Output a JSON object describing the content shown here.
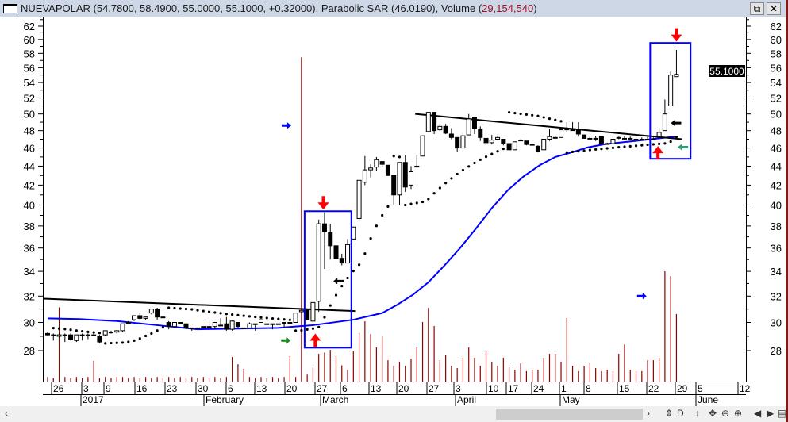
{
  "window": {
    "title_prefix": "NUEVAPOLAR (54.7800, 58.4900, 55.0000, 55.1000, +0.32000), Parabolic SAR (46.0190), Volume (",
    "title_volume": "29,154,540",
    "title_suffix": ")",
    "restore_icon": "restore-icon",
    "close_icon": "close-icon"
  },
  "price_badge": "55.1000",
  "bottom_controls": {
    "scroll_left": "‹",
    "scroll_right": "›",
    "buttons": [
      "⇕",
      "D",
      "↕",
      "✥",
      "⊖",
      "⊕",
      "◀",
      "▶",
      "▤"
    ]
  },
  "chart_data": {
    "type": "candlestick",
    "symbol": "NUEVAPOLAR",
    "y_scale": "log",
    "ylim": [
      26.5,
      63
    ],
    "y_ticks": [
      "28",
      "30",
      "32",
      "34",
      "36",
      "38",
      "40",
      "42",
      "44",
      "46",
      "48",
      "50",
      "52",
      "54",
      "56",
      "58",
      "60",
      "62"
    ],
    "x_tick_labels": [
      "26",
      "3",
      "9",
      "16",
      "23",
      "30",
      "6",
      "13",
      "20",
      "27",
      "6",
      "13",
      "20",
      "27",
      "3",
      "10",
      "17",
      "24",
      "1",
      "8",
      "15",
      "22",
      "29",
      "5",
      "12"
    ],
    "month_labels": [
      "2017",
      "February",
      "March",
      "April",
      "May",
      "June"
    ],
    "grid": false,
    "colors": {
      "up_fill": "#ffffff",
      "down_fill": "#000000",
      "volume": "#8b0000",
      "moving_average": "#0000ff",
      "trendline": "#000000",
      "box": "#0000ff",
      "sar": "#000000",
      "sell_arrow": "#ff0000",
      "buy_arrow": "#ff0000",
      "black_arrow": "#000000",
      "green_arrow": "#2e9e6e",
      "blue_arrow": "#0000ff"
    },
    "ohlc": [
      [
        29.2,
        29.3,
        29.0,
        29.1
      ],
      [
        29.1,
        29.2,
        28.7,
        29.1
      ],
      [
        29.0,
        29.2,
        28.9,
        29.1
      ],
      [
        29.1,
        29.2,
        28.6,
        29.1
      ],
      [
        29.1,
        29.2,
        28.7,
        28.8
      ],
      [
        28.7,
        29.1,
        28.6,
        29.1
      ],
      [
        29.1,
        29.2,
        28.7,
        29.1
      ],
      [
        29.1,
        29.2,
        28.8,
        29.1
      ],
      [
        29.1,
        29.2,
        29.0,
        29.1
      ],
      [
        29.0,
        29.1,
        28.5,
        28.6
      ],
      [
        29.1,
        29.4,
        29.0,
        29.4
      ],
      [
        29.3,
        29.4,
        29.2,
        29.3
      ],
      [
        29.3,
        29.4,
        29.2,
        29.4
      ],
      [
        29.4,
        29.9,
        29.3,
        29.9
      ],
      [
        30.0,
        30.1,
        29.9,
        30.0
      ],
      [
        30.2,
        30.5,
        30.1,
        30.5
      ],
      [
        30.5,
        30.7,
        30.2,
        30.3
      ],
      [
        30.3,
        30.4,
        30.2,
        30.4
      ],
      [
        30.7,
        31.0,
        30.6,
        31.0
      ],
      [
        31.0,
        31.1,
        30.2,
        30.4
      ],
      [
        30.4,
        30.4,
        30.4,
        30.4
      ],
      [
        30.0,
        30.1,
        29.5,
        29.7
      ],
      [
        29.7,
        30.0,
        29.7,
        30.0
      ],
      [
        30.0,
        30.0,
        30.0,
        30.0
      ],
      [
        29.9,
        29.9,
        29.5,
        29.6
      ],
      [
        29.6,
        29.6,
        29.4,
        29.6
      ],
      [
        29.6,
        29.6,
        29.6,
        29.6
      ],
      [
        29.7,
        29.7,
        29.7,
        29.7
      ],
      [
        29.7,
        30.2,
        29.7,
        29.7
      ],
      [
        29.7,
        30.0,
        29.5,
        30.0
      ],
      [
        29.8,
        30.3,
        29.8,
        29.8
      ],
      [
        29.9,
        30.4,
        29.4,
        29.5
      ],
      [
        29.5,
        30.2,
        29.4,
        30.1
      ],
      [
        30.0,
        30.0,
        29.6,
        29.7
      ],
      [
        29.6,
        29.6,
        29.6,
        29.6
      ],
      [
        29.6,
        30.0,
        29.6,
        29.9
      ],
      [
        29.9,
        29.9,
        29.4,
        29.9
      ],
      [
        30.0,
        30.2,
        30.0,
        30.2
      ],
      [
        29.9,
        29.9,
        29.9,
        29.9
      ],
      [
        29.9,
        29.9,
        29.5,
        29.9
      ],
      [
        29.9,
        29.9,
        29.9,
        29.9
      ],
      [
        30.0,
        30.0,
        29.6,
        30.0
      ],
      [
        30.0,
        30.0,
        29.9,
        30.0
      ],
      [
        30.0,
        30.7,
        30.0,
        30.7
      ],
      [
        30.8,
        31.0,
        30.7,
        30.9
      ],
      [
        31.0,
        31.0,
        30.2,
        30.2
      ],
      [
        30.1,
        31.5,
        30.0,
        31.5
      ],
      [
        31.6,
        38.6,
        30.8,
        38.2
      ],
      [
        38.2,
        39.3,
        34.2,
        37.5
      ],
      [
        37.4,
        38.2,
        35.0,
        36.2
      ],
      [
        36.2,
        36.2,
        34.3,
        35.1
      ],
      [
        35.1,
        35.5,
        34.5,
        34.7
      ],
      [
        34.7,
        36.8,
        34.7,
        36.3
      ],
      [
        36.8,
        37.9,
        36.8,
        37.9
      ],
      [
        38.7,
        42.5,
        38.5,
        42.5
      ],
      [
        42.3,
        45.1,
        42.0,
        43.6
      ],
      [
        43.6,
        44.2,
        42.8,
        43.8
      ],
      [
        43.9,
        45.0,
        43.5,
        44.7
      ],
      [
        44.5,
        44.5,
        43.9,
        44.2
      ],
      [
        44.1,
        44.1,
        43.0,
        43.0
      ],
      [
        43.0,
        43.0,
        40.0,
        41.0
      ],
      [
        41.0,
        44.4,
        40.0,
        44.4
      ],
      [
        44.4,
        45.2,
        41.3,
        41.8
      ],
      [
        42.0,
        44.0,
        41.6,
        43.4
      ],
      [
        43.9,
        45.2,
        43.9,
        44.0
      ],
      [
        45.1,
        47.4,
        45.1,
        47.4
      ],
      [
        47.9,
        50.2,
        47.9,
        50.2
      ],
      [
        50.2,
        50.2,
        47.6,
        48.0
      ],
      [
        48.1,
        48.8,
        48.0,
        48.5
      ],
      [
        48.5,
        48.8,
        47.6,
        47.7
      ],
      [
        47.6,
        48.3,
        47.0,
        47.2
      ],
      [
        47.2,
        47.2,
        45.6,
        46.0
      ],
      [
        46.0,
        47.7,
        46.0,
        47.4
      ],
      [
        47.5,
        50.0,
        47.5,
        49.4
      ],
      [
        49.6,
        49.6,
        47.6,
        48.3
      ],
      [
        48.2,
        48.5,
        46.8,
        47.2
      ],
      [
        47.1,
        47.1,
        46.4,
        46.6
      ],
      [
        46.6,
        47.5,
        46.4,
        46.9
      ],
      [
        47.0,
        47.3,
        46.9,
        47.2
      ],
      [
        47.0,
        47.0,
        46.3,
        46.5
      ],
      [
        46.5,
        46.5,
        45.6,
        45.8
      ],
      [
        45.8,
        46.7,
        45.8,
        46.7
      ],
      [
        46.9,
        47.0,
        46.8,
        46.9
      ],
      [
        46.8,
        46.8,
        46.3,
        46.4
      ],
      [
        46.4,
        46.4,
        46.3,
        46.4
      ],
      [
        46.2,
        46.3,
        45.5,
        45.6
      ],
      [
        45.8,
        47.0,
        45.8,
        47.0
      ],
      [
        47.0,
        48.2,
        46.8,
        47.3
      ],
      [
        47.2,
        47.3,
        47.1,
        47.2
      ],
      [
        47.2,
        48.3,
        47.2,
        48.1
      ],
      [
        48.2,
        49.0,
        47.8,
        48.1
      ],
      [
        48.1,
        49.0,
        48.1,
        48.1
      ],
      [
        48.2,
        49.0,
        47.3,
        47.6
      ],
      [
        47.5,
        47.5,
        47.1,
        47.1
      ],
      [
        47.1,
        47.4,
        47.1,
        47.1
      ],
      [
        47.1,
        47.4,
        46.8,
        47.1
      ],
      [
        47.3,
        47.4,
        46.4,
        46.5
      ],
      [
        46.5,
        46.6,
        46.5,
        46.5
      ],
      [
        46.5,
        47.1,
        46.4,
        47.0
      ],
      [
        47.2,
        47.3,
        47.0,
        47.2
      ],
      [
        47.1,
        47.4,
        46.9,
        47.1
      ],
      [
        47.1,
        47.3,
        47.0,
        47.1
      ],
      [
        47.0,
        47.2,
        46.9,
        47.0
      ],
      [
        47.0,
        47.2,
        47.0,
        47.0
      ],
      [
        47.0,
        47.3,
        46.9,
        47.0
      ],
      [
        47.0,
        47.2,
        46.9,
        47.0
      ],
      [
        47.3,
        48.3,
        47.2,
        47.8
      ],
      [
        48.0,
        51.8,
        48.0,
        50.0
      ],
      [
        51.0,
        55.6,
        51.0,
        55.0
      ],
      [
        54.78,
        58.49,
        55.0,
        55.1
      ]
    ],
    "volume_millions": [
      2,
      1.5,
      32,
      2,
      1.5,
      2,
      1.5,
      2,
      9,
      1.5,
      2,
      1.5,
      2,
      2,
      1.5,
      2,
      1.5,
      2,
      1.5,
      2,
      1.5,
      2,
      1.5,
      2,
      1.5,
      2,
      1.5,
      2,
      1.5,
      2,
      1.5,
      2,
      10.6,
      7.5,
      5.5,
      2,
      1.5,
      2,
      1.5,
      2,
      1.5,
      2,
      11,
      2,
      140,
      3,
      6,
      12,
      12.5,
      13.7,
      11,
      7,
      5,
      13,
      21,
      26,
      20.5,
      14.7,
      19.5,
      9.2,
      6.8,
      8.6,
      6.8,
      9.9,
      14.7,
      25.7,
      31.8,
      24,
      9.2,
      11.3,
      6.8,
      5.8,
      10.3,
      14.7,
      10.3,
      6.8,
      13,
      8.6,
      6.8,
      10.3,
      6.2,
      5.1,
      7.9,
      4.5,
      5.1,
      5.1,
      10.3,
      12,
      12,
      8.6,
      27.4,
      6.8,
      4.5,
      6.8,
      7.9,
      5.8,
      4.5,
      5.1,
      4.5,
      12,
      16,
      5.1,
      4.5,
      4.5,
      9.2,
      9.2,
      10.3,
      47.6,
      45.5,
      29.15
    ],
    "last_volume": 29154540,
    "parabolic_sar_last": 46.019,
    "moving_average": [
      [
        0,
        30.3
      ],
      [
        5.5,
        30.25
      ],
      [
        12,
        30.1
      ],
      [
        19,
        29.8
      ],
      [
        26,
        29.5
      ],
      [
        33,
        29.55
      ],
      [
        40,
        29.6
      ],
      [
        46,
        29.8
      ],
      [
        53,
        30.2
      ],
      [
        58,
        30.7
      ],
      [
        60.5,
        31.3
      ],
      [
        63.3,
        32.1
      ],
      [
        66,
        33.1
      ],
      [
        68.8,
        34.5
      ],
      [
        71.5,
        36.0
      ],
      [
        74.3,
        37.8
      ],
      [
        77,
        39.7
      ],
      [
        79.8,
        41.5
      ],
      [
        82.5,
        42.9
      ],
      [
        85.3,
        44.1
      ],
      [
        88,
        45.0
      ],
      [
        90.8,
        45.5
      ],
      [
        93.5,
        46.05
      ],
      [
        96.3,
        46.4
      ],
      [
        99,
        46.6
      ],
      [
        101.8,
        46.8
      ],
      [
        104.6,
        47.0
      ],
      [
        108.7,
        47.3
      ]
    ],
    "trendlines": [
      [
        [
          0,
          31.8
        ],
        [
          53.3,
          30.85
        ]
      ],
      [
        [
          64.4,
          50.0
        ],
        [
          110,
          47.0
        ]
      ]
    ],
    "boxes": [
      [
        45.1,
        53.2,
        28.2,
        39.4
      ],
      [
        105,
        112,
        44.8,
        59.5
      ]
    ],
    "annotations": [
      {
        "type": "sell_arrow",
        "at": [
          47.8,
          40.1
        ]
      },
      {
        "type": "sell_arrow",
        "at": [
          109,
          60.5
        ]
      },
      {
        "type": "buy_arrow",
        "at": [
          46.4,
          28.8
        ]
      },
      {
        "type": "buy_arrow",
        "at": [
          105.8,
          45.6
        ]
      },
      {
        "type": "black_arrow",
        "at": [
          50.5,
          33.2
        ]
      },
      {
        "type": "black_arrow",
        "at": [
          109,
          48.9
        ]
      },
      {
        "type": "green_arrow",
        "at": [
          110.2,
          46.1
        ]
      },
      {
        "type": "blue_arrow",
        "at": [
          41.4,
          48.6
        ]
      },
      {
        "type": "blue_arrow",
        "at": [
          103,
          32.0
        ]
      },
      {
        "type": "green_right_arrow",
        "at": [
          41.3,
          28.7
        ]
      }
    ]
  }
}
